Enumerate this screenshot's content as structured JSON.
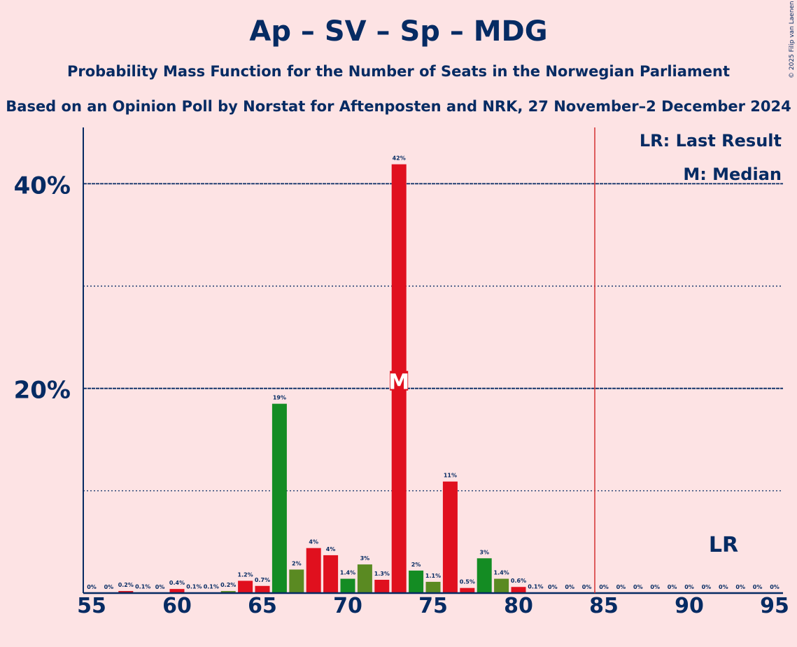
{
  "chart_data": {
    "type": "bar",
    "title": "Ap – SV – Sp – MDG",
    "subtitle": "Probability Mass Function for the Number of Seats in the Norwegian Parliament",
    "subsubtitle": "Based on an Opinion Poll by Norstat for Aftenposten and NRK, 27 November–2 December 2024",
    "copyright": "© 2025 Filip van Laenen",
    "xlim": [
      55,
      95
    ],
    "ylim": [
      0,
      45.5
    ],
    "x_ticks": [
      "55",
      "60",
      "65",
      "70",
      "75",
      "80",
      "85",
      "90",
      "95"
    ],
    "y_ticks": [
      {
        "value": 20,
        "label": "20%"
      },
      {
        "value": 40,
        "label": "40%"
      }
    ],
    "minor_gridlines": [
      10,
      30
    ],
    "last_result": 85,
    "median": 73,
    "median_marker": "M",
    "lr_marker": "LR",
    "legend": {
      "placement": "top-right",
      "items": [
        "LR: Last Result",
        "M: Median"
      ]
    },
    "colors": {
      "red": "#e0101e",
      "green": "#148c23",
      "olive": "#5a8a22",
      "dark_red": "#c8101b",
      "axis": "#062b63",
      "last_result_line": "#d33030",
      "background": "#fde3e4"
    },
    "bars": [
      {
        "seats": 55,
        "value": 0,
        "label": "0%",
        "color": "red"
      },
      {
        "seats": 56,
        "value": 0,
        "label": "0%",
        "color": "red"
      },
      {
        "seats": 57,
        "value": 0.2,
        "label": "0.2%",
        "color": "dark_red"
      },
      {
        "seats": 58,
        "value": 0.05,
        "label": "0.1%",
        "color": "red"
      },
      {
        "seats": 59,
        "value": 0,
        "label": "0%",
        "color": "red"
      },
      {
        "seats": 60,
        "value": 0.4,
        "label": "0.4%",
        "color": "red"
      },
      {
        "seats": 61,
        "value": 0.05,
        "label": "0.1%",
        "color": "red"
      },
      {
        "seats": 62,
        "value": 0.05,
        "label": "0.1%",
        "color": "red"
      },
      {
        "seats": 63,
        "value": 0.2,
        "label": "0.2%",
        "color": "olive"
      },
      {
        "seats": 64,
        "value": 1.2,
        "label": "1.2%",
        "color": "red"
      },
      {
        "seats": 65,
        "value": 0.7,
        "label": "0.7%",
        "color": "red"
      },
      {
        "seats": 66,
        "value": 18.5,
        "label": "19%",
        "color": "green"
      },
      {
        "seats": 67,
        "value": 2.3,
        "label": "2%",
        "color": "olive"
      },
      {
        "seats": 68,
        "value": 4.4,
        "label": "4%",
        "color": "red"
      },
      {
        "seats": 69,
        "value": 3.7,
        "label": "4%",
        "color": "red"
      },
      {
        "seats": 70,
        "value": 1.4,
        "label": "1.4%",
        "color": "green"
      },
      {
        "seats": 71,
        "value": 2.8,
        "label": "3%",
        "color": "olive"
      },
      {
        "seats": 72,
        "value": 1.3,
        "label": "1.3%",
        "color": "red"
      },
      {
        "seats": 73,
        "value": 41.9,
        "label": "42%",
        "color": "red"
      },
      {
        "seats": 74,
        "value": 2.2,
        "label": "2%",
        "color": "green"
      },
      {
        "seats": 75,
        "value": 1.1,
        "label": "1.1%",
        "color": "olive"
      },
      {
        "seats": 76,
        "value": 10.9,
        "label": "11%",
        "color": "red"
      },
      {
        "seats": 77,
        "value": 0.5,
        "label": "0.5%",
        "color": "red"
      },
      {
        "seats": 78,
        "value": 3.4,
        "label": "3%",
        "color": "green"
      },
      {
        "seats": 79,
        "value": 1.4,
        "label": "1.4%",
        "color": "olive"
      },
      {
        "seats": 80,
        "value": 0.6,
        "label": "0.6%",
        "color": "red"
      },
      {
        "seats": 81,
        "value": 0.05,
        "label": "0.1%",
        "color": "red"
      },
      {
        "seats": 82,
        "value": 0,
        "label": "0%",
        "color": "red"
      },
      {
        "seats": 83,
        "value": 0,
        "label": "0%",
        "color": "red"
      },
      {
        "seats": 84,
        "value": 0,
        "label": "0%",
        "color": "red"
      },
      {
        "seats": 85,
        "value": 0,
        "label": "0%",
        "color": "red"
      },
      {
        "seats": 86,
        "value": 0,
        "label": "0%",
        "color": "red"
      },
      {
        "seats": 87,
        "value": 0,
        "label": "0%",
        "color": "red"
      },
      {
        "seats": 88,
        "value": 0,
        "label": "0%",
        "color": "red"
      },
      {
        "seats": 89,
        "value": 0,
        "label": "0%",
        "color": "red"
      },
      {
        "seats": 90,
        "value": 0,
        "label": "0%",
        "color": "red"
      },
      {
        "seats": 91,
        "value": 0,
        "label": "0%",
        "color": "red"
      },
      {
        "seats": 92,
        "value": 0,
        "label": "0%",
        "color": "red"
      },
      {
        "seats": 93,
        "value": 0,
        "label": "0%",
        "color": "red"
      },
      {
        "seats": 94,
        "value": 0,
        "label": "0%",
        "color": "red"
      },
      {
        "seats": 95,
        "value": 0,
        "label": "0%",
        "color": "red"
      }
    ]
  }
}
